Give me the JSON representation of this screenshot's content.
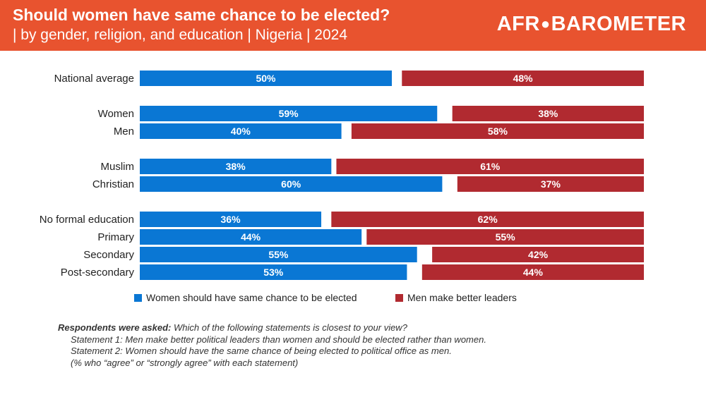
{
  "header": {
    "title": "Should women have same chance to be elected?",
    "subtitle": "| by gender, religion, and education | Nigeria | 2024",
    "logo_left": "AFR",
    "logo_right": "BAROMETER"
  },
  "colors": {
    "blue": "#0a77d4",
    "red": "#b12a30",
    "header": "#e8532f"
  },
  "chart_data": {
    "type": "bar",
    "orientation": "horizontal-stacked-diverging",
    "title": "Should women have same chance to be elected?",
    "categories": [
      "National average",
      "Women",
      "Men",
      "Muslim",
      "Christian",
      "No formal education",
      "Primary",
      "Secondary",
      "Post-secondary"
    ],
    "groups": [
      [
        0
      ],
      [
        1,
        2
      ],
      [
        3,
        4
      ],
      [
        5,
        6,
        7,
        8
      ]
    ],
    "series": [
      {
        "name": "Women should have same chance to be elected",
        "values": [
          50,
          59,
          40,
          38,
          60,
          36,
          44,
          55,
          53
        ]
      },
      {
        "name": "Men make better leaders",
        "values": [
          48,
          38,
          58,
          61,
          37,
          62,
          55,
          42,
          44
        ]
      }
    ],
    "unit": "%",
    "xlim": [
      0,
      100
    ]
  },
  "legend": {
    "item1": "Women should have same chance to be elected",
    "item2": "Men make better leaders"
  },
  "note": {
    "lead": "Respondents were asked:",
    "question": " Which of the following statements is closest to your view?",
    "statement1": "Statement 1: Men make better political leaders than women and should be elected rather than women.",
    "statement2": "Statement 2: Women should have the same chance of being elected to political office as men.",
    "footnote": "(% who “agree” or “strongly agree” with each statement)"
  }
}
